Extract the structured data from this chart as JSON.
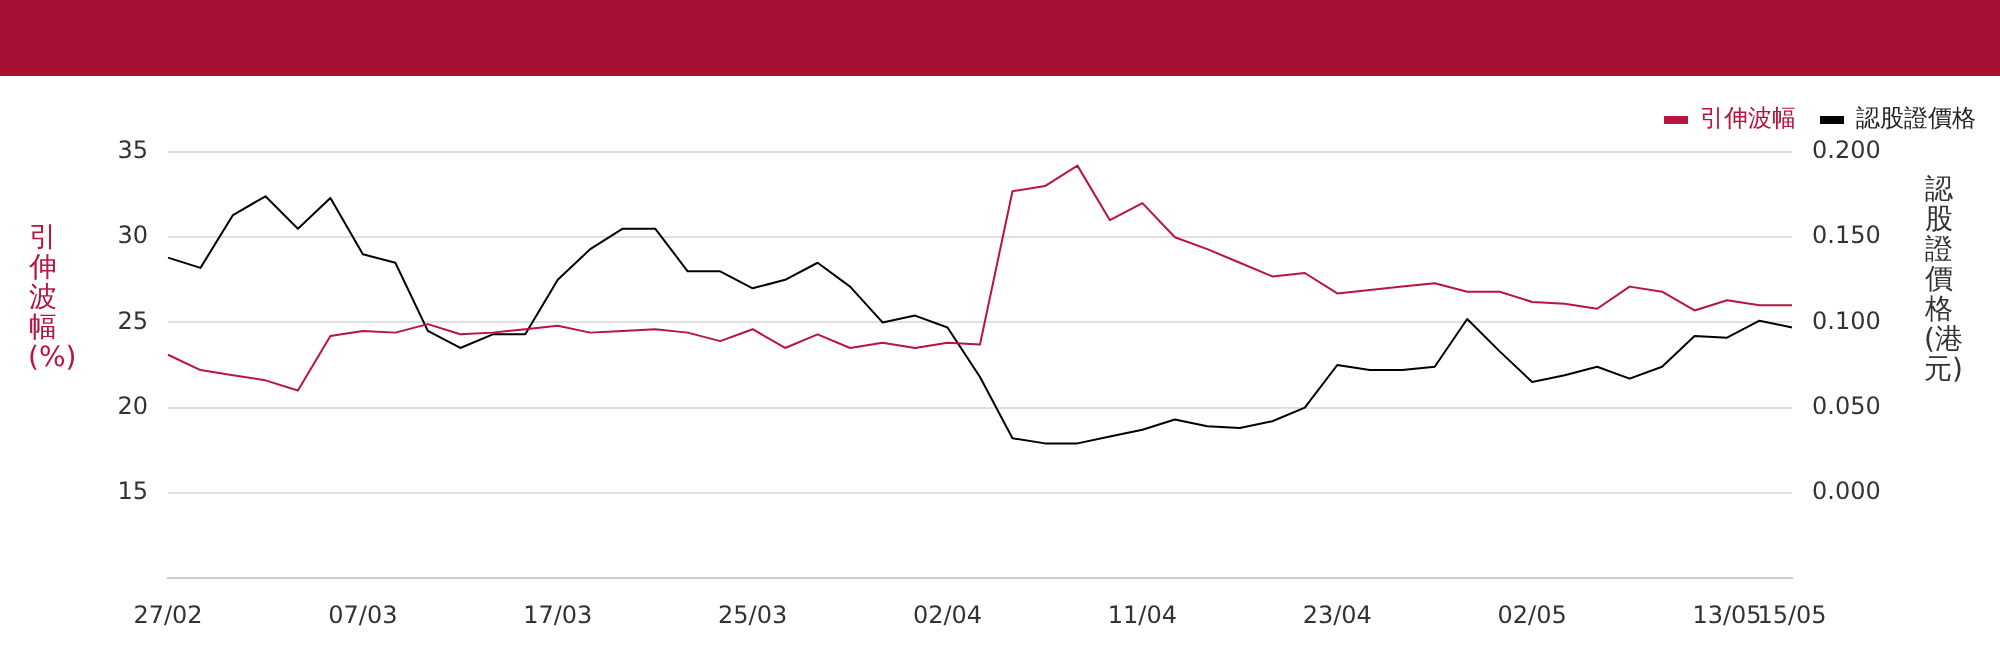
{
  "chart_data": {
    "type": "line",
    "xlabel": null,
    "ylabel": "引伸波幅(%)",
    "y2label": "認股證價格(港元)",
    "categories": [
      "27/02",
      null,
      null,
      null,
      null,
      null,
      "07/03",
      null,
      null,
      null,
      null,
      null,
      "17/03",
      null,
      null,
      null,
      null,
      null,
      "25/03",
      null,
      null,
      null,
      null,
      null,
      "02/04",
      null,
      null,
      null,
      null,
      null,
      "11/04",
      null,
      null,
      null,
      null,
      null,
      "23/04",
      null,
      null,
      null,
      null,
      null,
      "02/05",
      null,
      null,
      null,
      null,
      null,
      "13/05",
      null,
      "15/05"
    ],
    "series": [
      {
        "name": "引伸波幅",
        "color": "#b8143f",
        "values": [
          23.1,
          22.2,
          21.9,
          21.6,
          21.0,
          24.2,
          24.5,
          24.4,
          24.9,
          24.3,
          24.4,
          24.6,
          24.8,
          24.4,
          24.5,
          24.6,
          24.4,
          23.9,
          24.6,
          23.5,
          24.3,
          23.5,
          23.8,
          23.5,
          23.8,
          23.7,
          32.7,
          33.0,
          34.2,
          31.0,
          32.0,
          30.0,
          29.3,
          28.5,
          27.7,
          27.9,
          26.7,
          26.9,
          27.1,
          27.3,
          26.8,
          26.8,
          26.2,
          26.1,
          25.8,
          27.1,
          26.8,
          25.7,
          26.3,
          26.0,
          26.0
        ]
      },
      {
        "name": "認股證價格",
        "color": "#000000",
        "axis": "y2",
        "values": [
          0.138,
          0.132,
          0.163,
          0.174,
          0.155,
          0.173,
          0.14,
          0.135,
          0.095,
          0.085,
          0.093,
          0.093,
          0.125,
          0.143,
          0.155,
          0.155,
          0.13,
          0.13,
          0.12,
          0.125,
          0.135,
          0.121,
          0.1,
          0.104,
          0.097,
          0.068,
          0.032,
          0.029,
          0.029,
          0.033,
          0.037,
          0.043,
          0.039,
          0.038,
          0.042,
          0.05,
          0.075,
          0.072,
          0.072,
          0.074,
          0.102,
          0.083,
          0.065,
          0.069,
          0.074,
          0.067,
          0.074,
          0.092,
          0.091,
          0.101,
          0.097
        ]
      }
    ],
    "ylim": [
      10,
      35
    ],
    "yticks": [
      15,
      20,
      25,
      30,
      35
    ],
    "y2lim": [
      -0.05,
      0.2
    ],
    "y2ticks": [
      {
        "value": 0,
        "label": "0.000"
      },
      {
        "value": 0.05,
        "label": "0.050"
      },
      {
        "value": 0.1,
        "label": "0.100"
      },
      {
        "value": 0.15,
        "label": "0.150"
      },
      {
        "value": 0.2,
        "label": "0.200"
      }
    ],
    "grid": "y",
    "legend": "top right",
    "marker": "none",
    "line_style": "solid"
  }
}
